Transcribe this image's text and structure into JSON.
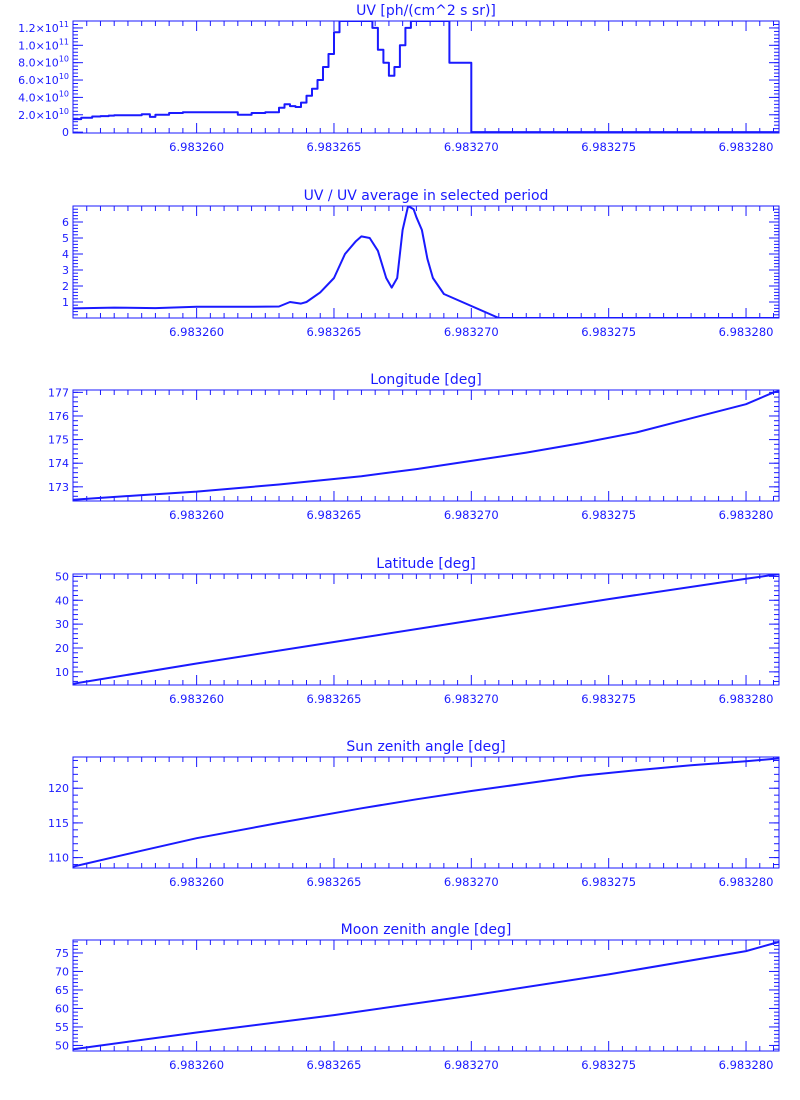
{
  "chart_data": [
    {
      "type": "line",
      "title": "UV [ph/(cm^2 s sr)]",
      "x_ticks": [
        {
          "value": 6.98326,
          "label": "6.983260"
        },
        {
          "value": 6.983265,
          "label": "6.983265"
        },
        {
          "value": 6.98327,
          "label": "6.983270"
        },
        {
          "value": 6.983275,
          "label": "6.983275"
        },
        {
          "value": 6.98328,
          "label": "6.983280"
        }
      ],
      "xlim": [
        6.9832555,
        6.9832812
      ],
      "ylim": [
        -1000000000.0,
        128000000000.0
      ],
      "y_ticks": [
        {
          "value": 0,
          "label": "0"
        },
        {
          "value": 20000000000.0,
          "mant": "2.0×10",
          "exp": "10"
        },
        {
          "value": 40000000000.0,
          "mant": "4.0×10",
          "exp": "10"
        },
        {
          "value": 60000000000.0,
          "mant": "6.0×10",
          "exp": "10"
        },
        {
          "value": 80000000000.0,
          "mant": "8.0×10",
          "exp": "10"
        },
        {
          "value": 100000000000.0,
          "mant": "1.0×10",
          "exp": "11"
        },
        {
          "value": 120000000000.0,
          "mant": "1.2×10",
          "exp": "11"
        }
      ],
      "step": true,
      "x": [
        6.9832555,
        6.9832558,
        6.9832562,
        6.9832565,
        6.9832568,
        6.983257,
        6.9832575,
        6.983258,
        6.9832583,
        6.9832585,
        6.983259,
        6.9832595,
        6.98326,
        6.983261,
        6.9832615,
        6.983262,
        6.9832625,
        6.983263,
        6.9832632,
        6.9832634,
        6.9832636,
        6.9832638,
        6.983264,
        6.9832642,
        6.9832644,
        6.9832646,
        6.9832648,
        6.983265,
        6.9832652,
        6.9832654,
        6.9832658,
        6.983266,
        6.9832662,
        6.9832664,
        6.9832666,
        6.9832668,
        6.983267,
        6.9832672,
        6.9832674,
        6.9832676,
        6.9832678,
        6.983268,
        6.9832682,
        6.9832684,
        6.9832686,
        6.9832688,
        6.983269,
        6.9832692,
        6.9832694,
        6.9832696,
        6.9832698,
        6.98327,
        6.983271,
        6.983272,
        6.983275,
        6.983278,
        6.9832812
      ],
      "values": [
        15000000000.0,
        16500000000.0,
        18000000000.0,
        18500000000.0,
        19000000000.0,
        19500000000.0,
        19500000000.0,
        20500000000.0,
        17500000000.0,
        20000000000.0,
        22000000000.0,
        23000000000.0,
        23000000000.0,
        23000000000.0,
        20000000000.0,
        22000000000.0,
        23000000000.0,
        28000000000.0,
        32000000000.0,
        30000000000.0,
        29000000000.0,
        34000000000.0,
        42000000000.0,
        50000000000.0,
        60000000000.0,
        75000000000.0,
        90000000000.0,
        115000000000.0,
        128000000000.0,
        128000000000.0,
        128000000000.0,
        128000000000.0,
        128000000000.0,
        120000000000.0,
        95000000000.0,
        80000000000.0,
        65000000000.0,
        75000000000.0,
        100000000000.0,
        120000000000.0,
        128000000000.0,
        128000000000.0,
        128000000000.0,
        128000000000.0,
        128000000000.0,
        128000000000.0,
        128000000000.0,
        80000000000.0,
        80000000000.0,
        80000000000.0,
        80000000000.0,
        0,
        0,
        0,
        0,
        0,
        0
      ]
    },
    {
      "type": "line",
      "title": "UV / UV average in selected period",
      "x_ticks": [
        {
          "value": 6.98326,
          "label": "6.983260"
        },
        {
          "value": 6.983265,
          "label": "6.983265"
        },
        {
          "value": 6.98327,
          "label": "6.983270"
        },
        {
          "value": 6.983275,
          "label": "6.983275"
        },
        {
          "value": 6.98328,
          "label": "6.983280"
        }
      ],
      "xlim": [
        6.9832555,
        6.9832812
      ],
      "ylim": [
        0,
        7
      ],
      "y_ticks": [
        {
          "value": 1,
          "label": "1"
        },
        {
          "value": 2,
          "label": "2"
        },
        {
          "value": 3,
          "label": "3"
        },
        {
          "value": 4,
          "label": "4"
        },
        {
          "value": 5,
          "label": "5"
        },
        {
          "value": 6,
          "label": "6"
        }
      ],
      "x": [
        6.9832555,
        6.983257,
        6.9832585,
        6.98326,
        6.983262,
        6.983263,
        6.9832634,
        6.9832638,
        6.983264,
        6.9832645,
        6.983265,
        6.9832654,
        6.9832658,
        6.983266,
        6.9832663,
        6.9832666,
        6.9832669,
        6.9832671,
        6.9832673,
        6.9832675,
        6.9832677,
        6.9832679,
        6.983268,
        6.9832682,
        6.9832684,
        6.9832686,
        6.983269,
        6.983271,
        6.983275,
        6.983278,
        6.9832812
      ],
      "values": [
        0.6,
        0.65,
        0.62,
        0.7,
        0.7,
        0.72,
        1.0,
        0.9,
        1.0,
        1.6,
        2.5,
        4.0,
        4.8,
        5.1,
        5.0,
        4.2,
        2.5,
        1.9,
        2.5,
        5.5,
        7.0,
        6.8,
        6.3,
        5.5,
        3.7,
        2.5,
        1.5,
        0,
        0,
        0,
        0
      ]
    },
    {
      "type": "line",
      "title": "Longitude [deg]",
      "x_ticks": [
        {
          "value": 6.98326,
          "label": "6.983260"
        },
        {
          "value": 6.983265,
          "label": "6.983265"
        },
        {
          "value": 6.98327,
          "label": "6.983270"
        },
        {
          "value": 6.983275,
          "label": "6.983275"
        },
        {
          "value": 6.98328,
          "label": "6.983280"
        }
      ],
      "xlim": [
        6.9832555,
        6.9832812
      ],
      "ylim": [
        172.4,
        177.1
      ],
      "y_ticks": [
        {
          "value": 173,
          "label": "173"
        },
        {
          "value": 174,
          "label": "174"
        },
        {
          "value": 175,
          "label": "175"
        },
        {
          "value": 176,
          "label": "176"
        },
        {
          "value": 177,
          "label": "177"
        }
      ],
      "x": [
        6.9832555,
        6.983258,
        6.98326,
        6.983263,
        6.983266,
        6.983268,
        6.98327,
        6.983272,
        6.983274,
        6.983276,
        6.983278,
        6.98328,
        6.983281,
        6.9832812
      ],
      "values": [
        172.45,
        172.65,
        172.8,
        173.1,
        173.45,
        173.75,
        174.1,
        174.45,
        174.85,
        175.3,
        175.9,
        176.5,
        177.0,
        177.05
      ]
    },
    {
      "type": "line",
      "title": "Latitude [deg]",
      "x_ticks": [
        {
          "value": 6.98326,
          "label": "6.983260"
        },
        {
          "value": 6.983265,
          "label": "6.983265"
        },
        {
          "value": 6.98327,
          "label": "6.983270"
        },
        {
          "value": 6.983275,
          "label": "6.983275"
        },
        {
          "value": 6.98328,
          "label": "6.983280"
        }
      ],
      "xlim": [
        6.9832555,
        6.9832812
      ],
      "ylim": [
        4.5,
        51
      ],
      "y_ticks": [
        {
          "value": 10,
          "label": "10"
        },
        {
          "value": 20,
          "label": "20"
        },
        {
          "value": 30,
          "label": "30"
        },
        {
          "value": 40,
          "label": "40"
        },
        {
          "value": 50,
          "label": "50"
        }
      ],
      "x": [
        6.9832555,
        6.98326,
        6.983265,
        6.98327,
        6.983275,
        6.98328,
        6.9832812
      ],
      "values": [
        5,
        13.5,
        22.5,
        31.5,
        40.5,
        49,
        51
      ]
    },
    {
      "type": "line",
      "title": "Sun zenith angle [deg]",
      "x_ticks": [
        {
          "value": 6.98326,
          "label": "6.983260"
        },
        {
          "value": 6.983265,
          "label": "6.983265"
        },
        {
          "value": 6.98327,
          "label": "6.983270"
        },
        {
          "value": 6.983275,
          "label": "6.983275"
        },
        {
          "value": 6.98328,
          "label": "6.983280"
        }
      ],
      "xlim": [
        6.9832555,
        6.9832812
      ],
      "ylim": [
        108.5,
        124.5
      ],
      "y_ticks": [
        {
          "value": 110,
          "label": "110"
        },
        {
          "value": 115,
          "label": "115"
        },
        {
          "value": 120,
          "label": "120"
        }
      ],
      "x": [
        6.9832555,
        6.983258,
        6.98326,
        6.983263,
        6.983266,
        6.983268,
        6.98327,
        6.983272,
        6.983274,
        6.983276,
        6.983278,
        6.98328,
        6.9832812
      ],
      "values": [
        108.7,
        111.0,
        112.8,
        115.0,
        117.1,
        118.4,
        119.6,
        120.7,
        121.8,
        122.6,
        123.3,
        123.9,
        124.3
      ]
    },
    {
      "type": "line",
      "title": "Moon zenith angle [deg]",
      "x_ticks": [
        {
          "value": 6.98326,
          "label": "6.983260"
        },
        {
          "value": 6.983265,
          "label": "6.983265"
        },
        {
          "value": 6.98327,
          "label": "6.983270"
        },
        {
          "value": 6.983275,
          "label": "6.983275"
        },
        {
          "value": 6.98328,
          "label": "6.983280"
        }
      ],
      "xlim": [
        6.9832555,
        6.9832812
      ],
      "ylim": [
        48.5,
        78.5
      ],
      "y_ticks": [
        {
          "value": 50,
          "label": "50"
        },
        {
          "value": 55,
          "label": "55"
        },
        {
          "value": 60,
          "label": "60"
        },
        {
          "value": 65,
          "label": "65"
        },
        {
          "value": 70,
          "label": "70"
        },
        {
          "value": 75,
          "label": "75"
        }
      ],
      "x": [
        6.9832555,
        6.98326,
        6.983265,
        6.98327,
        6.983275,
        6.98328,
        6.9832812
      ],
      "values": [
        49,
        53.5,
        58.2,
        63.5,
        69.2,
        75.5,
        78
      ]
    }
  ],
  "colors": {
    "line": "#1a1aff"
  }
}
